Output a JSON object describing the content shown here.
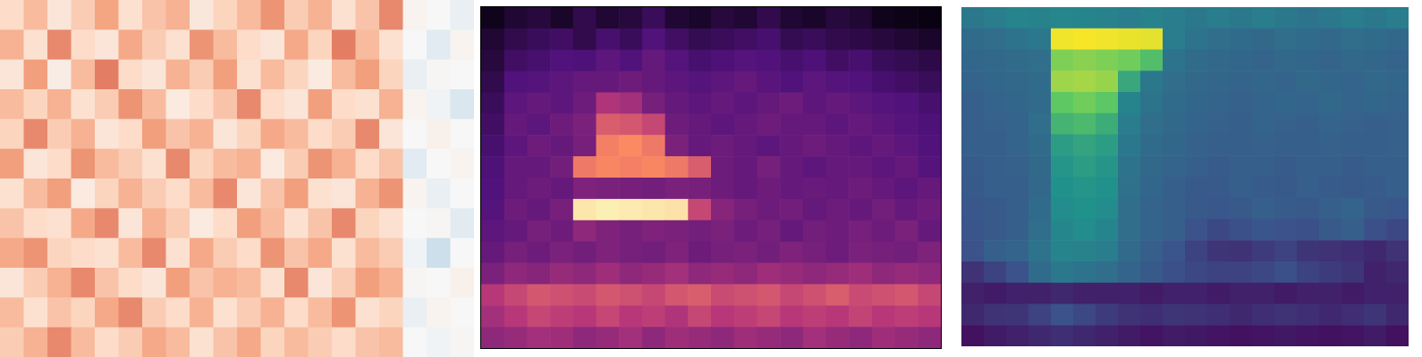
{
  "chart_data": [
    {
      "type": "heatmap",
      "color": "RdBu_r",
      "tick_labels": false,
      "cells": [
        [
          0.62,
          0.7,
          0.58,
          0.66,
          0.75,
          0.6,
          0.68,
          0.72,
          0.57,
          0.64,
          0.7,
          0.78,
          0.66,
          0.72,
          0.6,
          0.68,
          0.8,
          0.52,
          0.5,
          0.48
        ],
        [
          0.72,
          0.6,
          0.8,
          0.62,
          0.58,
          0.74,
          0.66,
          0.6,
          0.78,
          0.7,
          0.62,
          0.58,
          0.74,
          0.64,
          0.82,
          0.7,
          0.6,
          0.5,
          0.47,
          0.52
        ],
        [
          0.58,
          0.76,
          0.55,
          0.7,
          0.82,
          0.62,
          0.58,
          0.72,
          0.66,
          0.76,
          0.6,
          0.7,
          0.64,
          0.56,
          0.7,
          0.76,
          0.64,
          0.48,
          0.51,
          0.5
        ],
        [
          0.7,
          0.64,
          0.72,
          0.6,
          0.66,
          0.78,
          0.7,
          0.56,
          0.62,
          0.68,
          0.8,
          0.62,
          0.58,
          0.76,
          0.62,
          0.6,
          0.72,
          0.52,
          0.49,
          0.46
        ],
        [
          0.64,
          0.8,
          0.66,
          0.72,
          0.58,
          0.62,
          0.76,
          0.68,
          0.72,
          0.58,
          0.64,
          0.74,
          0.7,
          0.62,
          0.66,
          0.8,
          0.58,
          0.5,
          0.53,
          0.5
        ],
        [
          0.76,
          0.58,
          0.62,
          0.78,
          0.7,
          0.66,
          0.6,
          0.8,
          0.64,
          0.7,
          0.72,
          0.56,
          0.66,
          0.78,
          0.72,
          0.62,
          0.68,
          0.47,
          0.5,
          0.52
        ],
        [
          0.6,
          0.7,
          0.76,
          0.56,
          0.64,
          0.72,
          0.66,
          0.62,
          0.7,
          0.8,
          0.58,
          0.68,
          0.76,
          0.6,
          0.58,
          0.72,
          0.78,
          0.52,
          0.48,
          0.5
        ],
        [
          0.68,
          0.62,
          0.6,
          0.74,
          0.8,
          0.58,
          0.72,
          0.66,
          0.56,
          0.62,
          0.76,
          0.7,
          0.6,
          0.68,
          0.8,
          0.64,
          0.6,
          0.5,
          0.51,
          0.47
        ],
        [
          0.74,
          0.78,
          0.64,
          0.62,
          0.6,
          0.7,
          0.8,
          0.6,
          0.74,
          0.66,
          0.62,
          0.78,
          0.68,
          0.74,
          0.6,
          0.7,
          0.66,
          0.49,
          0.44,
          0.5
        ],
        [
          0.58,
          0.66,
          0.72,
          0.8,
          0.68,
          0.62,
          0.58,
          0.76,
          0.68,
          0.72,
          0.7,
          0.6,
          0.8,
          0.58,
          0.66,
          0.76,
          0.72,
          0.51,
          0.5,
          0.53
        ],
        [
          0.7,
          0.6,
          0.68,
          0.64,
          0.74,
          0.8,
          0.66,
          0.62,
          0.72,
          0.6,
          0.66,
          0.72,
          0.62,
          0.7,
          0.78,
          0.6,
          0.64,
          0.48,
          0.52,
          0.5
        ],
        [
          0.66,
          0.72,
          0.8,
          0.7,
          0.62,
          0.66,
          0.74,
          0.7,
          0.6,
          0.68,
          0.74,
          0.64,
          0.7,
          0.66,
          0.62,
          0.68,
          0.7,
          0.5,
          0.49,
          0.51
        ]
      ]
    },
    {
      "type": "heatmap",
      "color": "magma",
      "tick_labels": false,
      "cells": [
        [
          0.05,
          0.1,
          0.12,
          0.08,
          0.15,
          0.1,
          0.12,
          0.18,
          0.1,
          0.08,
          0.12,
          0.1,
          0.15,
          0.1,
          0.08,
          0.12,
          0.1,
          0.05,
          0.04,
          0.03
        ],
        [
          0.1,
          0.15,
          0.18,
          0.2,
          0.15,
          0.22,
          0.18,
          0.25,
          0.2,
          0.16,
          0.18,
          0.2,
          0.22,
          0.16,
          0.18,
          0.15,
          0.14,
          0.12,
          0.1,
          0.08
        ],
        [
          0.12,
          0.2,
          0.22,
          0.25,
          0.24,
          0.28,
          0.25,
          0.3,
          0.26,
          0.22,
          0.24,
          0.26,
          0.25,
          0.22,
          0.24,
          0.2,
          0.22,
          0.18,
          0.16,
          0.14
        ],
        [
          0.15,
          0.25,
          0.26,
          0.28,
          0.3,
          0.3,
          0.32,
          0.3,
          0.28,
          0.26,
          0.28,
          0.3,
          0.27,
          0.25,
          0.28,
          0.26,
          0.25,
          0.22,
          0.2,
          0.18
        ],
        [
          0.18,
          0.28,
          0.3,
          0.28,
          0.32,
          0.48,
          0.45,
          0.34,
          0.3,
          0.28,
          0.3,
          0.28,
          0.3,
          0.32,
          0.28,
          0.3,
          0.28,
          0.26,
          0.25,
          0.22
        ],
        [
          0.2,
          0.3,
          0.28,
          0.32,
          0.35,
          0.62,
          0.6,
          0.55,
          0.32,
          0.3,
          0.28,
          0.3,
          0.32,
          0.3,
          0.3,
          0.28,
          0.3,
          0.28,
          0.26,
          0.24
        ],
        [
          0.22,
          0.28,
          0.32,
          0.3,
          0.34,
          0.72,
          0.75,
          0.7,
          0.35,
          0.3,
          0.32,
          0.3,
          0.28,
          0.3,
          0.32,
          0.3,
          0.28,
          0.3,
          0.28,
          0.25
        ],
        [
          0.24,
          0.3,
          0.3,
          0.33,
          0.7,
          0.74,
          0.72,
          0.74,
          0.7,
          0.62,
          0.32,
          0.3,
          0.34,
          0.3,
          0.28,
          0.3,
          0.3,
          0.28,
          0.3,
          0.26
        ],
        [
          0.25,
          0.3,
          0.32,
          0.3,
          0.36,
          0.35,
          0.34,
          0.33,
          0.35,
          0.34,
          0.32,
          0.3,
          0.32,
          0.3,
          0.31,
          0.3,
          0.32,
          0.3,
          0.28,
          0.3
        ],
        [
          0.26,
          0.32,
          0.3,
          0.34,
          0.95,
          0.97,
          0.96,
          0.95,
          0.94,
          0.55,
          0.38,
          0.34,
          0.32,
          0.33,
          0.3,
          0.32,
          0.3,
          0.33,
          0.3,
          0.32
        ],
        [
          0.28,
          0.3,
          0.34,
          0.32,
          0.4,
          0.36,
          0.34,
          0.36,
          0.35,
          0.33,
          0.35,
          0.32,
          0.34,
          0.3,
          0.33,
          0.32,
          0.34,
          0.32,
          0.35,
          0.3
        ],
        [
          0.3,
          0.34,
          0.32,
          0.35,
          0.33,
          0.36,
          0.34,
          0.33,
          0.36,
          0.32,
          0.34,
          0.35,
          0.33,
          0.36,
          0.34,
          0.32,
          0.35,
          0.34,
          0.33,
          0.36
        ],
        [
          0.35,
          0.4,
          0.38,
          0.42,
          0.4,
          0.44,
          0.4,
          0.42,
          0.45,
          0.4,
          0.42,
          0.4,
          0.44,
          0.42,
          0.4,
          0.42,
          0.44,
          0.4,
          0.42,
          0.4
        ],
        [
          0.5,
          0.55,
          0.6,
          0.58,
          0.56,
          0.6,
          0.58,
          0.55,
          0.6,
          0.62,
          0.56,
          0.58,
          0.6,
          0.55,
          0.58,
          0.62,
          0.56,
          0.58,
          0.6,
          0.55
        ],
        [
          0.45,
          0.5,
          0.55,
          0.52,
          0.5,
          0.55,
          0.5,
          0.52,
          0.48,
          0.55,
          0.5,
          0.52,
          0.55,
          0.5,
          0.52,
          0.5,
          0.54,
          0.5,
          0.52,
          0.5
        ],
        [
          0.4,
          0.42,
          0.45,
          0.44,
          0.4,
          0.42,
          0.45,
          0.4,
          0.44,
          0.42,
          0.4,
          0.44,
          0.42,
          0.4,
          0.45,
          0.42,
          0.4,
          0.44,
          0.42,
          0.4
        ]
      ]
    },
    {
      "type": "heatmap",
      "color": "viridis",
      "tick_labels": false,
      "cells": [
        [
          0.4,
          0.42,
          0.45,
          0.44,
          0.46,
          0.45,
          0.44,
          0.42,
          0.44,
          0.42,
          0.4,
          0.42,
          0.4,
          0.42,
          0.4,
          0.38,
          0.4,
          0.42,
          0.4,
          0.42
        ],
        [
          0.35,
          0.36,
          0.38,
          0.4,
          0.98,
          0.99,
          0.98,
          0.97,
          0.96,
          0.42,
          0.38,
          0.36,
          0.35,
          0.34,
          0.36,
          0.35,
          0.34,
          0.36,
          0.35,
          0.34
        ],
        [
          0.33,
          0.34,
          0.35,
          0.36,
          0.8,
          0.82,
          0.8,
          0.78,
          0.7,
          0.38,
          0.35,
          0.34,
          0.33,
          0.32,
          0.34,
          0.33,
          0.32,
          0.34,
          0.33,
          0.32
        ],
        [
          0.32,
          0.33,
          0.34,
          0.35,
          0.85,
          0.86,
          0.84,
          0.6,
          0.4,
          0.36,
          0.34,
          0.33,
          0.32,
          0.33,
          0.32,
          0.34,
          0.33,
          0.32,
          0.34,
          0.33
        ],
        [
          0.3,
          0.32,
          0.33,
          0.35,
          0.75,
          0.78,
          0.74,
          0.45,
          0.38,
          0.35,
          0.33,
          0.32,
          0.31,
          0.32,
          0.33,
          0.32,
          0.34,
          0.32,
          0.33,
          0.32
        ],
        [
          0.3,
          0.31,
          0.32,
          0.36,
          0.65,
          0.68,
          0.62,
          0.42,
          0.36,
          0.34,
          0.32,
          0.31,
          0.3,
          0.32,
          0.31,
          0.3,
          0.32,
          0.31,
          0.3,
          0.31
        ],
        [
          0.3,
          0.3,
          0.32,
          0.35,
          0.55,
          0.58,
          0.55,
          0.4,
          0.35,
          0.33,
          0.31,
          0.3,
          0.3,
          0.31,
          0.3,
          0.3,
          0.31,
          0.3,
          0.3,
          0.31
        ],
        [
          0.29,
          0.3,
          0.31,
          0.34,
          0.52,
          0.55,
          0.52,
          0.38,
          0.34,
          0.32,
          0.3,
          0.29,
          0.3,
          0.3,
          0.29,
          0.3,
          0.3,
          0.29,
          0.3,
          0.3
        ],
        [
          0.28,
          0.3,
          0.3,
          0.34,
          0.5,
          0.52,
          0.5,
          0.37,
          0.33,
          0.3,
          0.28,
          0.28,
          0.3,
          0.29,
          0.28,
          0.3,
          0.29,
          0.28,
          0.29,
          0.3
        ],
        [
          0.27,
          0.28,
          0.3,
          0.35,
          0.48,
          0.5,
          0.48,
          0.36,
          0.32,
          0.3,
          0.28,
          0.27,
          0.28,
          0.3,
          0.29,
          0.28,
          0.3,
          0.32,
          0.28,
          0.27
        ],
        [
          0.26,
          0.28,
          0.3,
          0.36,
          0.46,
          0.48,
          0.45,
          0.36,
          0.32,
          0.3,
          0.25,
          0.22,
          0.24,
          0.26,
          0.25,
          0.24,
          0.28,
          0.3,
          0.24,
          0.22
        ],
        [
          0.25,
          0.3,
          0.32,
          0.38,
          0.45,
          0.44,
          0.42,
          0.35,
          0.3,
          0.26,
          0.2,
          0.16,
          0.15,
          0.18,
          0.2,
          0.16,
          0.15,
          0.14,
          0.12,
          0.15
        ],
        [
          0.15,
          0.2,
          0.25,
          0.35,
          0.4,
          0.38,
          0.36,
          0.32,
          0.28,
          0.24,
          0.22,
          0.2,
          0.2,
          0.22,
          0.24,
          0.2,
          0.18,
          0.16,
          0.1,
          0.12
        ],
        [
          0.1,
          0.08,
          0.1,
          0.1,
          0.12,
          0.1,
          0.1,
          0.1,
          0.08,
          0.1,
          0.1,
          0.08,
          0.1,
          0.1,
          0.08,
          0.1,
          0.1,
          0.08,
          0.1,
          0.1
        ],
        [
          0.12,
          0.15,
          0.16,
          0.2,
          0.25,
          0.22,
          0.18,
          0.15,
          0.14,
          0.16,
          0.15,
          0.14,
          0.12,
          0.14,
          0.15,
          0.14,
          0.12,
          0.14,
          0.16,
          0.12
        ],
        [
          0.05,
          0.08,
          0.1,
          0.12,
          0.14,
          0.12,
          0.1,
          0.08,
          0.06,
          0.08,
          0.07,
          0.06,
          0.05,
          0.06,
          0.07,
          0.06,
          0.05,
          0.06,
          0.08,
          0.05
        ]
      ]
    }
  ]
}
